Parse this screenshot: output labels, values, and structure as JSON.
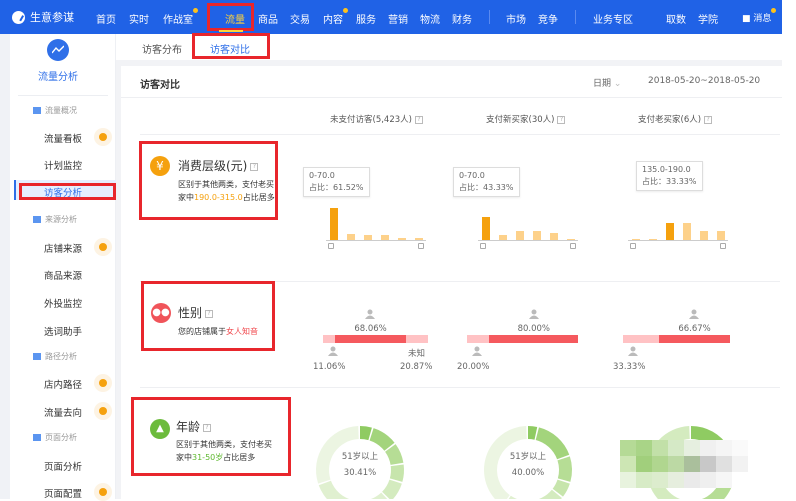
{
  "topbar": {
    "brand": "生意参谋",
    "nav": [
      "首页",
      "实时",
      "作战室",
      "流量",
      "商品",
      "交易",
      "内容",
      "服务",
      "营销",
      "物流",
      "财务",
      "市场",
      "竞争",
      "业务专区",
      "取数",
      "学院"
    ],
    "active": "流量",
    "message": "消息"
  },
  "sidebar": {
    "title": "流量分析",
    "groups": [
      "流量概况",
      "来源分析",
      "路径分析",
      "页面分析"
    ],
    "items": [
      "流量看板",
      "计划监控",
      "访客分析",
      "店铺来源",
      "商品来源",
      "外投监控",
      "选词助手",
      "店内路径",
      "流量去向",
      "页面分析",
      "页面配置"
    ],
    "active": "访客分析"
  },
  "subtabs": [
    "访客分布",
    "访客对比"
  ],
  "card": {
    "title": "访客对比",
    "date_label": "日期",
    "date_range": "2018-05-20~2018-05-20",
    "columns": [
      "未支付访客(5,423人)",
      "支付新买家(30人)",
      "支付老买家(6人)"
    ]
  },
  "spend": {
    "title": "消费层级(元)",
    "desc_pre": "区别于其他两类，支付老买家中",
    "desc_hl": "190.0-315.0",
    "desc_post": "占比居多",
    "tooltips": [
      {
        "range": "0-70.0",
        "ratio": "占比：61.52%"
      },
      {
        "range": "0-70.0",
        "ratio": "占比：43.33%"
      },
      {
        "range": "135.0-190.0",
        "ratio": "占比：33.33%"
      }
    ],
    "highlight_color": "#f5a10e",
    "light_color": "#fdd18a"
  },
  "chart_data": [
    {
      "type": "bar",
      "series": "未支付访客",
      "values": [
        61.52,
        11.5,
        10,
        9,
        4.5,
        3.5
      ],
      "highlight_index": 0
    },
    {
      "type": "bar",
      "series": "支付新买家",
      "values": [
        43.33,
        10,
        16.67,
        16.67,
        13.33,
        0.5
      ],
      "highlight_index": 0
    },
    {
      "type": "bar",
      "series": "支付老买家",
      "values": [
        0.5,
        0.5,
        33.33,
        33.33,
        16.67,
        16.67
      ],
      "highlight_index": 2
    }
  ],
  "gender": {
    "title": "性别",
    "desc_pre": "您的店铺属于",
    "desc_hl": "女人知音",
    "unknown_label": "未知",
    "columns": [
      {
        "female": "68.06%",
        "male": "11.06%",
        "unknown": "20.87%",
        "f": 68.06,
        "m": 11.06,
        "u": 20.87
      },
      {
        "female": "80.00%",
        "male": "20.00%",
        "f": 80,
        "m": 20,
        "u": 0
      },
      {
        "female": "66.67%",
        "male": "33.33%",
        "f": 66.67,
        "m": 33.33,
        "u": 0
      }
    ]
  },
  "age": {
    "title": "年龄",
    "desc_pre": "区别于其他两类，支付老买家中",
    "desc_hl": "31-50岁",
    "desc_post": "占比居多",
    "donuts": [
      {
        "label": "51岁以上",
        "value": "30.41%",
        "segments": [
          5,
          10,
          8,
          7,
          8,
          32,
          30
        ]
      },
      {
        "label": "51岁以上",
        "value": "40.00%",
        "segments": [
          4,
          16,
          10,
          6,
          14,
          10,
          40
        ]
      },
      {
        "label": "",
        "value": "",
        "segments": [
          17,
          33,
          50
        ]
      }
    ]
  }
}
